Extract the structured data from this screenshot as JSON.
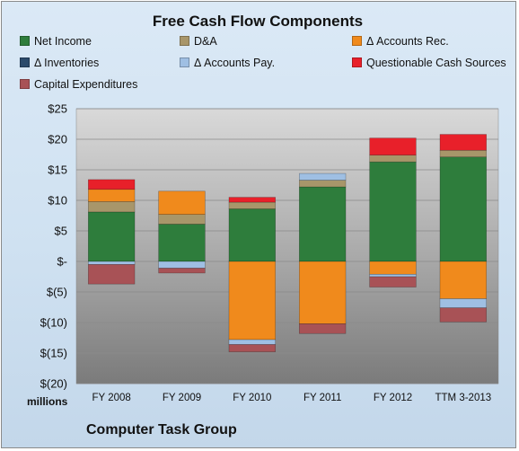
{
  "chart_data": {
    "type": "bar",
    "stacked": true,
    "title": "Free Cash Flow Components",
    "units_label": "millions",
    "footer": "Computer Task Group",
    "categories": [
      "FY 2008",
      "FY 2009",
      "FY 2010",
      "FY 2011",
      "FY 2012",
      "TTM 3-2013"
    ],
    "ylim": [
      -20,
      25
    ],
    "yticks": [
      25,
      20,
      15,
      10,
      5,
      0,
      -5,
      -10,
      -15,
      -20
    ],
    "ytick_labels": [
      "$25",
      "$20",
      "$15",
      "$10",
      "$5",
      "$-",
      "$(5)",
      "$(10)",
      "$(15)",
      "$(20)"
    ],
    "grid": true,
    "legend": "top",
    "series": [
      {
        "name": "Net Income",
        "color": "#2e7d3c",
        "values": [
          8.1,
          6.1,
          8.6,
          12.2,
          16.3,
          17.1
        ]
      },
      {
        "name": "D&A",
        "color": "#a8966a",
        "values": [
          1.7,
          1.6,
          1.1,
          1.1,
          1.1,
          1.1
        ]
      },
      {
        "name": "Δ Accounts Rec.",
        "color": "#f08a1c",
        "values": [
          2.0,
          3.8,
          -12.8,
          -10.2,
          -2.1,
          -6.1
        ]
      },
      {
        "name": "Δ Inventories",
        "color": "#2b4a6b",
        "values": [
          0,
          0,
          0,
          0,
          0,
          0
        ]
      },
      {
        "name": "Δ Accounts Pay.",
        "color": "#9fbfe3",
        "values": [
          -0.5,
          -1.1,
          -0.8,
          1.1,
          -0.4,
          -1.5
        ]
      },
      {
        "name": "Questionable Cash Sources",
        "color": "#e8202a",
        "values": [
          1.6,
          0,
          0.8,
          0,
          2.8,
          2.6
        ]
      },
      {
        "name": "Capital Expenditures",
        "color": "#a85256",
        "values": [
          -3.2,
          -0.8,
          -1.2,
          -1.6,
          -1.7,
          -2.3
        ]
      }
    ]
  }
}
